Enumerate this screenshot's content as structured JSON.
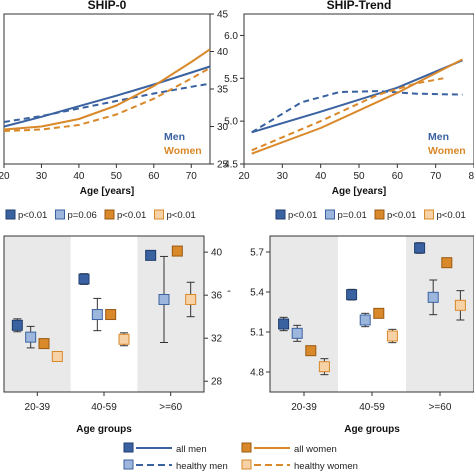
{
  "colors": {
    "men": "#3a62a0",
    "healthy_men": "#9db6dd",
    "women": "#d9882a",
    "healthy_women": "#f6d2a6",
    "band": "#e9e9e9"
  },
  "chart_data": [
    {
      "id": "ship0_line",
      "type": "line",
      "title": "SHIP-0",
      "xlabel": "Age [years]",
      "xlim": [
        20,
        75
      ],
      "ylim": [
        25,
        45
      ],
      "xticks": [
        20,
        30,
        40,
        50,
        60,
        70
      ],
      "yticks": [
        25,
        30,
        35,
        40,
        45
      ],
      "y_axis_side": "right",
      "grid": false,
      "inline_labels": [
        "Men",
        "Women"
      ],
      "series": [
        {
          "key": "all_men",
          "x": [
            20,
            30,
            40,
            50,
            60,
            70,
            75
          ],
          "y": [
            30.0,
            31.3,
            32.7,
            34.1,
            35.6,
            37.2,
            38.0
          ]
        },
        {
          "key": "healthy_men",
          "x": [
            20,
            30,
            40,
            50,
            60,
            70,
            75
          ],
          "y": [
            30.6,
            31.4,
            32.4,
            33.4,
            34.4,
            35.3,
            35.7
          ]
        },
        {
          "key": "all_women",
          "x": [
            20,
            30,
            40,
            50,
            60,
            70,
            75
          ],
          "y": [
            29.6,
            30.0,
            31.0,
            32.8,
            35.4,
            38.6,
            40.3
          ]
        },
        {
          "key": "healthy_women",
          "x": [
            20,
            30,
            40,
            50,
            60,
            70,
            75
          ],
          "y": [
            29.4,
            29.6,
            30.2,
            31.6,
            33.7,
            36.4,
            37.8
          ]
        }
      ]
    },
    {
      "id": "shiptrend_line",
      "type": "line",
      "title": "SHIP-Trend",
      "xlabel": "Age [years]",
      "xlim": [
        20,
        80
      ],
      "ylim": [
        4.5,
        6.25
      ],
      "xticks": [
        20,
        30,
        40,
        50,
        60,
        70,
        80
      ],
      "yticks": [
        "4.5",
        "5.0",
        "5.5",
        "6.0"
      ],
      "y_axis_side": "left",
      "grid": false,
      "inline_labels": [
        "Men",
        "Women"
      ],
      "series": [
        {
          "key": "all_men",
          "x": [
            22,
            40,
            60,
            77
          ],
          "y": [
            4.87,
            5.11,
            5.39,
            5.71
          ]
        },
        {
          "key": "healthy_men",
          "x": [
            22,
            35,
            45,
            55,
            65,
            77
          ],
          "y": [
            4.87,
            5.22,
            5.34,
            5.35,
            5.32,
            5.31
          ]
        },
        {
          "key": "all_women",
          "x": [
            22,
            40,
            60,
            77
          ],
          "y": [
            4.62,
            4.92,
            5.33,
            5.72
          ]
        },
        {
          "key": "healthy_women",
          "x": [
            22,
            40,
            55,
            65,
            72
          ],
          "y": [
            4.66,
            5.0,
            5.31,
            5.44,
            5.5
          ]
        }
      ]
    },
    {
      "id": "ship0_groups",
      "type": "scatter",
      "xlabel": "Age groups",
      "categories": [
        "20-39",
        "40-59",
        ">=60"
      ],
      "ylim": [
        27,
        41.5
      ],
      "yticks": [
        28,
        32,
        36,
        40
      ],
      "y_axis_side": "right",
      "legend": [
        "p<0.01",
        "p=0.06",
        "p<0.01",
        "p<0.01"
      ],
      "series": [
        {
          "key": "all_men",
          "values": [
            33.2,
            37.5,
            39.7
          ],
          "errors": [
            0.6,
            0.5,
            0.4
          ]
        },
        {
          "key": "healthy_men",
          "values": [
            32.1,
            34.2,
            35.6
          ],
          "errors": [
            1.0,
            1.5,
            4.0
          ]
        },
        {
          "key": "all_women",
          "values": [
            31.5,
            34.2,
            40.1
          ],
          "errors": [
            0.4,
            0.4,
            0.3
          ]
        },
        {
          "key": "healthy_women",
          "values": [
            30.3,
            31.9,
            35.6
          ],
          "errors": [
            0.4,
            0.6,
            1.6
          ]
        }
      ]
    },
    {
      "id": "shiptrend_groups",
      "type": "scatter",
      "xlabel": "Age groups",
      "categories": [
        "20-39",
        "40-59",
        ">=60"
      ],
      "ylim": [
        4.65,
        5.82
      ],
      "yticks": [
        "4.8",
        "5.1",
        "5.4",
        "5.7"
      ],
      "y_axis_side": "left",
      "legend": [
        "p<0.01",
        "p=0.01",
        "p<0.01",
        "p<0.01"
      ],
      "series": [
        {
          "key": "all_men",
          "values": [
            5.16,
            5.38,
            5.73
          ],
          "errors": [
            0.05,
            0.04,
            0.04
          ]
        },
        {
          "key": "healthy_men",
          "values": [
            5.09,
            5.19,
            5.36
          ],
          "errors": [
            0.06,
            0.05,
            0.13
          ]
        },
        {
          "key": "all_women",
          "values": [
            4.96,
            5.24,
            5.62
          ],
          "errors": [
            0.03,
            0.03,
            0.03
          ]
        },
        {
          "key": "healthy_women",
          "values": [
            4.84,
            5.07,
            5.3
          ],
          "errors": [
            0.06,
            0.05,
            0.11
          ]
        }
      ]
    }
  ],
  "series_legend": [
    {
      "key": "all_men",
      "label": "all men"
    },
    {
      "key": "all_women",
      "label": "all women"
    },
    {
      "key": "healthy_men",
      "label": "healthy men"
    },
    {
      "key": "healthy_women",
      "label": "healthy women"
    }
  ],
  "stray_mark": "ˆ"
}
